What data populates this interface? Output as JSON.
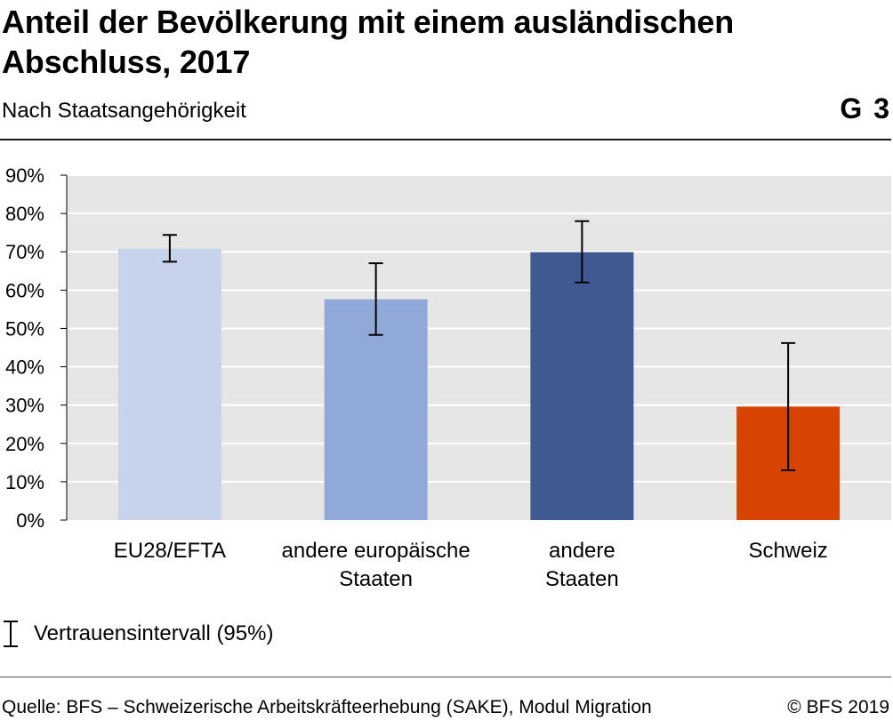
{
  "header": {
    "title": "Anteil der Bevölkerung mit einem ausländischen Abschluss, 2017",
    "subtitle": "Nach Staatsangehörigkeit",
    "graph_id": "G 3"
  },
  "legend": {
    "label": "Vertrauensintervall (95%)"
  },
  "footer": {
    "source": "Quelle: BFS – Schweizerische Arbeitskräfteerhebung (SAKE), Modul Migration",
    "copyright": "© BFS 2019"
  },
  "chart_data": {
    "type": "bar",
    "title": "Anteil der Bevölkerung mit einem ausländischen Abschluss, 2017",
    "subtitle": "Nach Staatsangehörigkeit",
    "categories": [
      [
        "EU28/EFTA"
      ],
      [
        "andere europäische",
        "Staaten"
      ],
      [
        "andere",
        "Staaten"
      ],
      [
        "Schweiz"
      ]
    ],
    "values": [
      70.8,
      57.6,
      69.9,
      29.6
    ],
    "error_low": [
      67.4,
      48.3,
      62.0,
      13.0
    ],
    "error_high": [
      74.4,
      67.0,
      78.0,
      46.2
    ],
    "colors": [
      "#c6d3eb",
      "#91a9d8",
      "#3f5a91",
      "#d64400"
    ],
    "ylim": [
      0,
      90
    ],
    "yticks": [
      "0%",
      "10%",
      "20%",
      "30%",
      "40%",
      "50%",
      "60%",
      "70%",
      "80%",
      "90%"
    ],
    "ytick_values": [
      0,
      10,
      20,
      30,
      40,
      50,
      60,
      70,
      80,
      90
    ],
    "grid": true,
    "background": "#e6e6e6",
    "gridline_color": "#ffffff",
    "errorbar_color": "#000000",
    "xlabel": "",
    "ylabel": ""
  }
}
